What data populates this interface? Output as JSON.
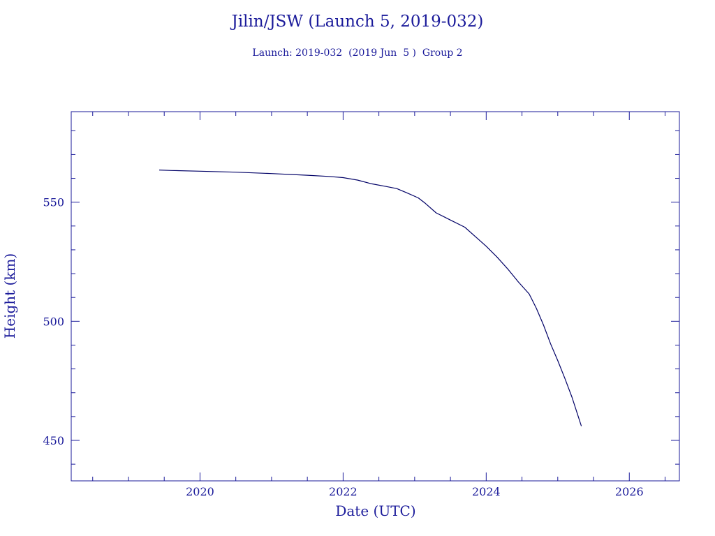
{
  "colors": {
    "ink": "#1a1a9a",
    "line": "#000066",
    "background": "#ffffff"
  },
  "title": "Jilin/JSW (Launch 5, 2019-032)",
  "subtitle": "Launch: 2019-032  (2019 Jun  5 )  Group 2",
  "chart_data": {
    "type": "line",
    "title": "Jilin/JSW (Launch 5, 2019-032)",
    "subtitle": "Launch: 2019-032  (2019 Jun  5 )  Group 2",
    "xlabel": "Date (UTC)",
    "ylabel": "Height (km)",
    "xlim": [
      2018.2,
      2026.7
    ],
    "ylim": [
      433,
      588
    ],
    "x_ticks": [
      2020,
      2022,
      2024,
      2026
    ],
    "x_tick_labels": [
      "2020",
      "2022",
      "2024",
      "2026"
    ],
    "x_minor_step": 0.5,
    "y_ticks": [
      450,
      500,
      550
    ],
    "y_tick_labels": [
      "450",
      "500",
      "550"
    ],
    "y_minor_step": 10,
    "grid": false,
    "series": [
      {
        "x": [
          2019.43,
          2019.6,
          2020.0,
          2020.5,
          2021.0,
          2021.5,
          2021.8,
          2022.0,
          2022.2,
          2022.4,
          2022.6,
          2022.75,
          2022.9,
          2023.05,
          2023.15,
          2023.3,
          2023.5,
          2023.7,
          2023.85,
          2024.0,
          2024.15,
          2024.3,
          2024.45,
          2024.6,
          2024.7,
          2024.8,
          2024.9,
          2025.0,
          2025.1,
          2025.2,
          2025.27,
          2025.33
        ],
        "y": [
          563.5,
          563.3,
          563.0,
          562.6,
          562.0,
          561.3,
          560.8,
          560.3,
          559.3,
          557.7,
          556.6,
          555.7,
          553.8,
          551.8,
          549.5,
          545.5,
          542.5,
          539.5,
          535.5,
          531.5,
          527.0,
          522.0,
          516.5,
          511.5,
          505.5,
          498.5,
          490.5,
          483.5,
          476.0,
          468.0,
          461.5,
          456.0
        ]
      }
    ]
  }
}
